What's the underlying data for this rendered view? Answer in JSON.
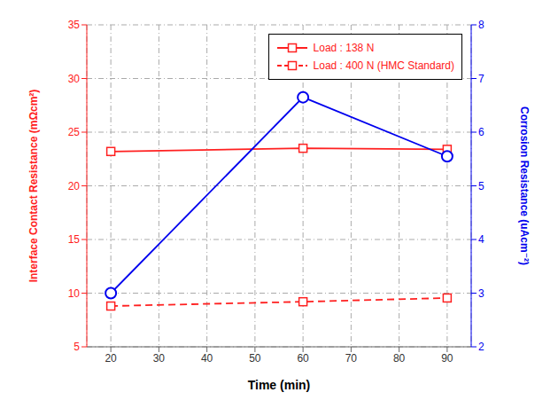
{
  "chart_data": {
    "type": "line",
    "xlabel": "Time (min)",
    "ylabel": "Interface Contact Resistance (mΩcm²)",
    "y2label": "Corrosion Resistance (uAcm⁻²)",
    "x": [
      20,
      60,
      90
    ],
    "series": [
      {
        "name": "Load : 138 N",
        "color": "#FF2020",
        "values": [
          23.2,
          23.5,
          23.4
        ],
        "marker": "square",
        "line_style": "solid",
        "axis": "y"
      },
      {
        "name": "Load : 400 N (HMC Standard)",
        "color": "#FF2020",
        "values": [
          8.8,
          9.2,
          9.55
        ],
        "marker": "square",
        "line_style": "dashed",
        "axis": "y"
      },
      {
        "color": "#0000EE",
        "values": [
          3.0,
          6.65,
          5.55
        ],
        "marker": "circle",
        "line_style": "solid",
        "axis": "y2"
      }
    ],
    "xlim": [
      15,
      95
    ],
    "xticks": [
      20,
      30,
      40,
      50,
      60,
      70,
      80,
      90
    ],
    "ylim": [
      5,
      35
    ],
    "yticks": [
      5,
      10,
      15,
      20,
      25,
      30,
      35
    ],
    "y2lim": [
      2,
      8
    ],
    "y2ticks": [
      2,
      3,
      4,
      5,
      6,
      7,
      8
    ],
    "grid": true,
    "legend": "upper right"
  }
}
